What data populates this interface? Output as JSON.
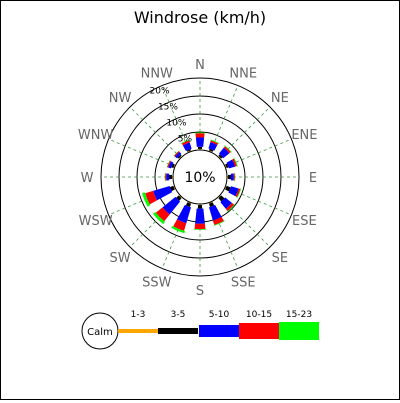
{
  "chart_data": {
    "type": "windrose",
    "title": "Windrose (km/h)",
    "directions": [
      "N",
      "NNE",
      "NE",
      "ENE",
      "E",
      "ESE",
      "SE",
      "SSE",
      "S",
      "SSW",
      "SW",
      "WSW",
      "W",
      "WNW",
      "NW",
      "NNW"
    ],
    "rings": [
      5,
      10,
      15,
      20
    ],
    "ring_labels": [
      "5%",
      "10%",
      "15%",
      "20%"
    ],
    "calm_percent": "10%",
    "calm_label": "Calm",
    "speed_bins": [
      {
        "label": "1-3",
        "color": "#ffa500"
      },
      {
        "label": "3-5",
        "color": "#000000"
      },
      {
        "label": "5-10",
        "color": "#0000ff"
      },
      {
        "label": "10-15",
        "color": "#ff0000"
      },
      {
        "label": "15-23",
        "color": "#00ff00"
      }
    ],
    "series": [
      {
        "name": "1-3",
        "values": [
          0.3,
          0.3,
          0.3,
          0.3,
          0.3,
          0.3,
          0.3,
          0.3,
          0.3,
          0.3,
          0.3,
          0.3,
          0.3,
          0.3,
          0.3,
          0.3
        ]
      },
      {
        "name": "3-5",
        "values": [
          0.6,
          0.5,
          0.5,
          0.6,
          0.8,
          1.2,
          1.2,
          1.0,
          1.0,
          1.0,
          1.0,
          1.0,
          0.8,
          0.6,
          0.4,
          0.4
        ]
      },
      {
        "name": "5-10",
        "values": [
          2.6,
          1.8,
          2.2,
          1.8,
          0.8,
          2.2,
          2.4,
          3.8,
          4.2,
          4.6,
          4.6,
          4.8,
          0.8,
          0.8,
          0.8,
          1.8
        ]
      },
      {
        "name": "10-15",
        "values": [
          1.2,
          0.5,
          0.5,
          0.5,
          0.3,
          0.5,
          0.8,
          1.3,
          1.5,
          2.2,
          2.4,
          2.3,
          0.3,
          0.3,
          0.3,
          0.6
        ]
      },
      {
        "name": "15-23",
        "values": [
          0.2,
          0.2,
          0.2,
          0.2,
          0.1,
          0.2,
          0.2,
          0.2,
          0.2,
          0.6,
          0.8,
          0.8,
          0.1,
          0.1,
          0.1,
          0.2
        ]
      }
    ]
  }
}
